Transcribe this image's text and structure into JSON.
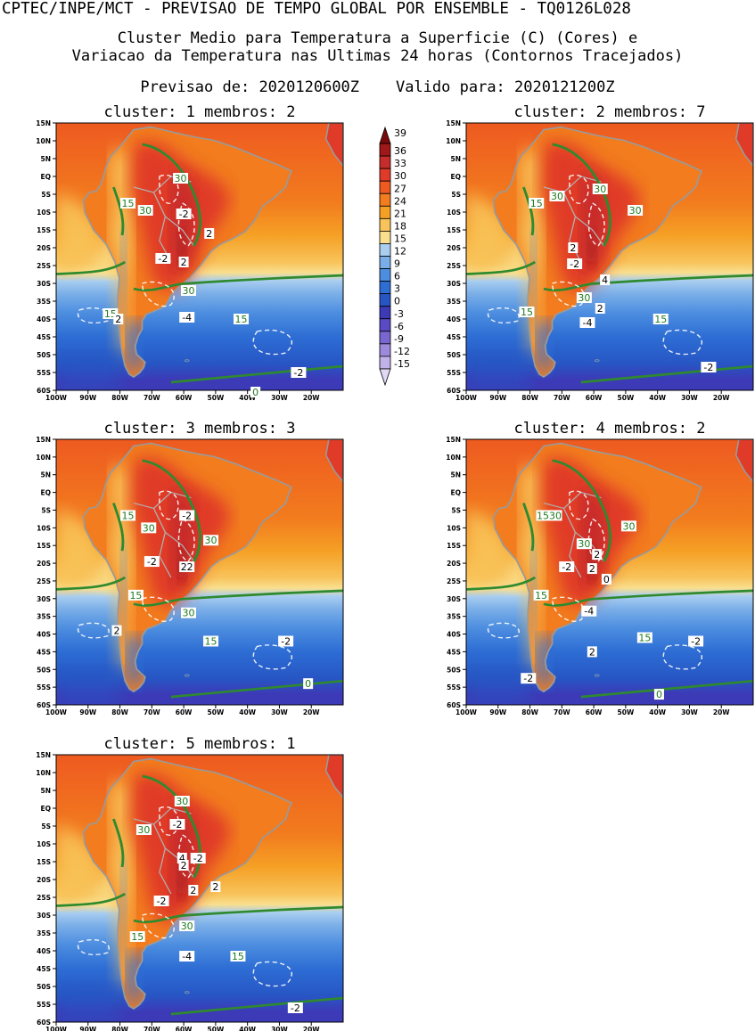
{
  "header": {
    "line1": "CPTEC/INPE/MCT - PREVISAO DE TEMPO GLOBAL POR ENSEMBLE - TQ0126L028",
    "line2": "Cluster Medio para Temperatura a Superficie (C) (Cores) e",
    "line3": "Variacao da Temperatura nas Ultimas 24 horas (Contornos Tracejados)",
    "line4": "Previsao de: 2020120600Z    Valido para: 2020121200Z"
  },
  "axes": {
    "lat_labels": [
      "15N",
      "10N",
      "5N",
      "EQ",
      "5S",
      "10S",
      "15S",
      "20S",
      "25S",
      "30S",
      "35S",
      "40S",
      "45S",
      "50S",
      "55S",
      "60S"
    ],
    "lon_labels": [
      "100W",
      "90W",
      "80W",
      "70W",
      "60W",
      "50W",
      "40W",
      "30W",
      "20W"
    ]
  },
  "colorbar": {
    "labels": [
      "39",
      "36",
      "33",
      "30",
      "27",
      "24",
      "21",
      "18",
      "15",
      "12",
      "9",
      "6",
      "3",
      "0",
      "-3",
      "-6",
      "-9",
      "-12",
      "-15"
    ],
    "colors": [
      "#7a0a0a",
      "#a01818",
      "#c62c2c",
      "#e03a28",
      "#ee5a20",
      "#f27c1e",
      "#f5a025",
      "#f8c35a",
      "#f9df8e",
      "#a9cef0",
      "#7aaee8",
      "#4d8ee0",
      "#2d6dd4",
      "#2756c4",
      "#3c3ab6",
      "#5a4ac4",
      "#7a66d0",
      "#9e8adc",
      "#c2b2ea",
      "#e0d8f4"
    ]
  },
  "clusters": [
    {
      "title": "cluster: 1   membros: 2",
      "labels": [
        {
          "text": "30",
          "lon": -61,
          "lat": -0.5,
          "c": "g"
        },
        {
          "text": "15",
          "lon": -77.5,
          "lat": -7.5,
          "c": "g"
        },
        {
          "text": "30",
          "lon": -72,
          "lat": -9.5,
          "c": "g"
        },
        {
          "text": "-2",
          "lon": -60,
          "lat": -10.5,
          "c": "k"
        },
        {
          "text": "2",
          "lon": -52,
          "lat": -16,
          "c": "k"
        },
        {
          "text": "-2",
          "lon": -66.5,
          "lat": -23,
          "c": "k"
        },
        {
          "text": "2",
          "lon": -60,
          "lat": -24,
          "c": "k"
        },
        {
          "text": "30",
          "lon": -58.5,
          "lat": -32,
          "c": "g"
        },
        {
          "text": "-4",
          "lon": -59,
          "lat": -39.5,
          "c": "k"
        },
        {
          "text": "15",
          "lon": -83,
          "lat": -38.5,
          "c": "g"
        },
        {
          "text": "2",
          "lon": -80.5,
          "lat": -40,
          "c": "k"
        },
        {
          "text": "15",
          "lon": -42,
          "lat": -40,
          "c": "g"
        },
        {
          "text": "-2",
          "lon": -24,
          "lat": -55,
          "c": "k"
        },
        {
          "text": "0",
          "lon": -37.5,
          "lat": -60.5,
          "c": "g"
        }
      ]
    },
    {
      "title": "cluster: 2   membros: 7",
      "labels": [
        {
          "text": "30",
          "lon": -58,
          "lat": -3.5,
          "c": "g"
        },
        {
          "text": "30",
          "lon": -71.5,
          "lat": -5.5,
          "c": "g"
        },
        {
          "text": "15",
          "lon": -78,
          "lat": -7.5,
          "c": "g"
        },
        {
          "text": "30",
          "lon": -47,
          "lat": -9.5,
          "c": "g"
        },
        {
          "text": "2",
          "lon": -66.5,
          "lat": -20,
          "c": "k"
        },
        {
          "text": "-2",
          "lon": -66,
          "lat": -24.5,
          "c": "k"
        },
        {
          "text": "4",
          "lon": -56.5,
          "lat": -29,
          "c": "k"
        },
        {
          "text": "30",
          "lon": -63,
          "lat": -34,
          "c": "g"
        },
        {
          "text": "2",
          "lon": -58,
          "lat": -37,
          "c": "k"
        },
        {
          "text": "15",
          "lon": -81,
          "lat": -38,
          "c": "g"
        },
        {
          "text": "-4",
          "lon": -62,
          "lat": -41,
          "c": "k"
        },
        {
          "text": "15",
          "lon": -39,
          "lat": -40,
          "c": "g"
        },
        {
          "text": "-2",
          "lon": -24,
          "lat": -53.5,
          "c": "k"
        }
      ]
    },
    {
      "title": "cluster: 3   membros: 3",
      "labels": [
        {
          "text": "15",
          "lon": -77.5,
          "lat": -6.5,
          "c": "g"
        },
        {
          "text": "-2",
          "lon": -59,
          "lat": -6.5,
          "c": "k"
        },
        {
          "text": "30",
          "lon": -71,
          "lat": -10,
          "c": "g"
        },
        {
          "text": "30",
          "lon": -51.5,
          "lat": -13.5,
          "c": "g"
        },
        {
          "text": "-2",
          "lon": -70,
          "lat": -19.5,
          "c": "k"
        },
        {
          "text": "22",
          "lon": -59,
          "lat": -21,
          "c": "k"
        },
        {
          "text": "15",
          "lon": -75,
          "lat": -29,
          "c": "g"
        },
        {
          "text": "30",
          "lon": -58.5,
          "lat": -34,
          "c": "g"
        },
        {
          "text": "2",
          "lon": -81,
          "lat": -39,
          "c": "k"
        },
        {
          "text": "15",
          "lon": -51.5,
          "lat": -42,
          "c": "g"
        },
        {
          "text": "-2",
          "lon": -28,
          "lat": -42,
          "c": "k"
        },
        {
          "text": "0",
          "lon": -21,
          "lat": -54,
          "c": "g"
        }
      ]
    },
    {
      "title": "cluster: 4   membros: 2",
      "labels": [
        {
          "text": "1530",
          "lon": -74,
          "lat": -6.5,
          "c": "g"
        },
        {
          "text": "30",
          "lon": -49,
          "lat": -9.5,
          "c": "g"
        },
        {
          "text": "30",
          "lon": -63,
          "lat": -14.5,
          "c": "g"
        },
        {
          "text": "2",
          "lon": -59,
          "lat": -17.5,
          "c": "k"
        },
        {
          "text": "-2",
          "lon": -68.5,
          "lat": -21,
          "c": "k"
        },
        {
          "text": "2",
          "lon": -60.5,
          "lat": -21.5,
          "c": "k"
        },
        {
          "text": "0",
          "lon": -56,
          "lat": -24.5,
          "c": "k"
        },
        {
          "text": "15",
          "lon": -76.5,
          "lat": -29,
          "c": "g"
        },
        {
          "text": "-4",
          "lon": -61.5,
          "lat": -33.5,
          "c": "k"
        },
        {
          "text": "15",
          "lon": -44,
          "lat": -41,
          "c": "g"
        },
        {
          "text": "-2",
          "lon": -28,
          "lat": -42,
          "c": "k"
        },
        {
          "text": "2",
          "lon": -60.5,
          "lat": -45,
          "c": "k"
        },
        {
          "text": "-2",
          "lon": -80.5,
          "lat": -52.5,
          "c": "k"
        },
        {
          "text": "0",
          "lon": -39.5,
          "lat": -57,
          "c": "g"
        }
      ]
    },
    {
      "title": "cluster: 5   membros: 1",
      "labels": [
        {
          "text": "30",
          "lon": -60.5,
          "lat": 2,
          "c": "g"
        },
        {
          "text": "-2",
          "lon": -62,
          "lat": -4.5,
          "c": "k"
        },
        {
          "text": "30",
          "lon": -72.5,
          "lat": -6,
          "c": "g"
        },
        {
          "text": "-2",
          "lon": -55.5,
          "lat": -14,
          "c": "k"
        },
        {
          "text": "4",
          "lon": -60.5,
          "lat": -14,
          "c": "k"
        },
        {
          "text": "2",
          "lon": -60,
          "lat": -16,
          "c": "k"
        },
        {
          "text": "2",
          "lon": -50,
          "lat": -22,
          "c": "k"
        },
        {
          "text": "2",
          "lon": -57,
          "lat": -23,
          "c": "k"
        },
        {
          "text": "-2",
          "lon": -67,
          "lat": -26,
          "c": "k"
        },
        {
          "text": "30",
          "lon": -59,
          "lat": -33,
          "c": "g"
        },
        {
          "text": "15",
          "lon": -74.5,
          "lat": -36,
          "c": "g"
        },
        {
          "text": "-4",
          "lon": -59,
          "lat": -41.5,
          "c": "k"
        },
        {
          "text": "15",
          "lon": -43,
          "lat": -41.5,
          "c": "g"
        },
        {
          "text": "-2",
          "lon": -25,
          "lat": -56,
          "c": "k"
        }
      ]
    }
  ]
}
